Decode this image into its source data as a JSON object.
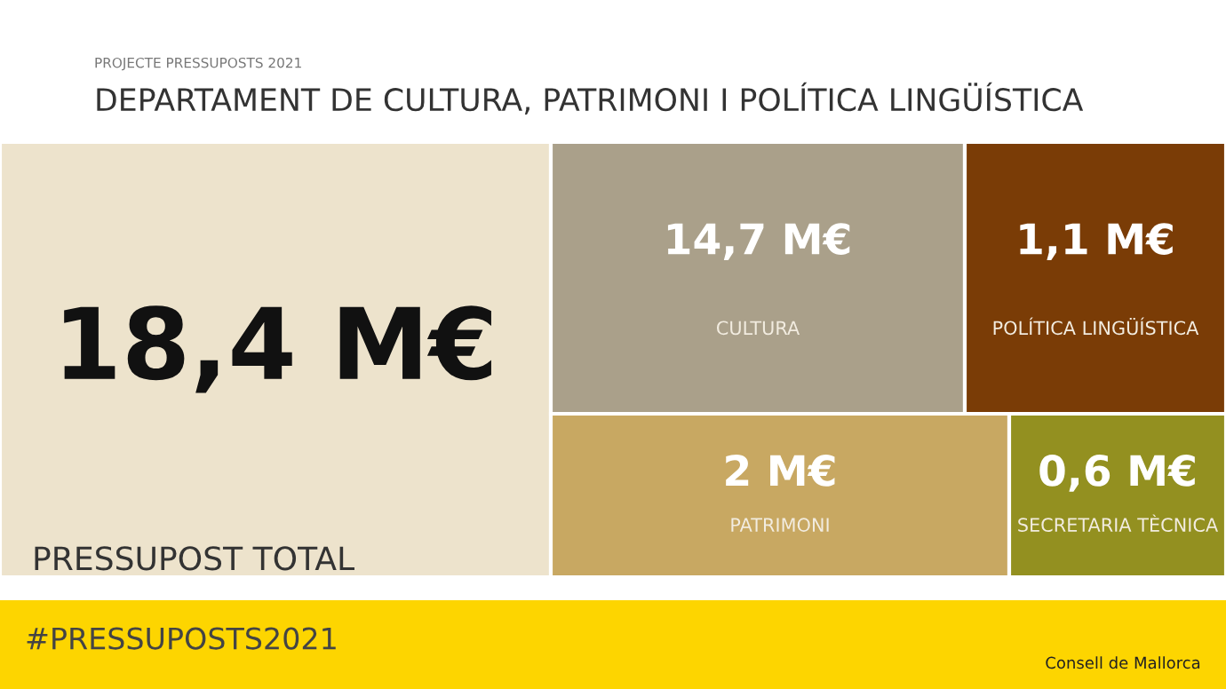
{
  "chart_data": {
    "type": "other",
    "subtitle": "PROJECTE PRESSUPOSTS 2021",
    "title": "DEPARTAMENT DE CULTURA, PATRIMONI I POLÍTICA LINGÜÍSTICA",
    "categories": [
      "PRESSUPOST TOTAL",
      "CULTURA",
      "POLÍTICA LINGÜÍSTICA",
      "PATRIMONI",
      "SECRETARIA TÈCNICA"
    ],
    "values": [
      18.4,
      14.7,
      1.1,
      2,
      0.6
    ],
    "value_labels": [
      "18,4 M€",
      "14,7 M€",
      "1,1 M€",
      "2 M€",
      "0,6 M€"
    ],
    "colors": [
      "#ede3cc",
      "#aaa08a",
      "#7a3c06",
      "#c8a862",
      "#939020"
    ],
    "annotations": [
      "#PRESSUPOSTS2021",
      "Consell de Mallorca"
    ]
  }
}
